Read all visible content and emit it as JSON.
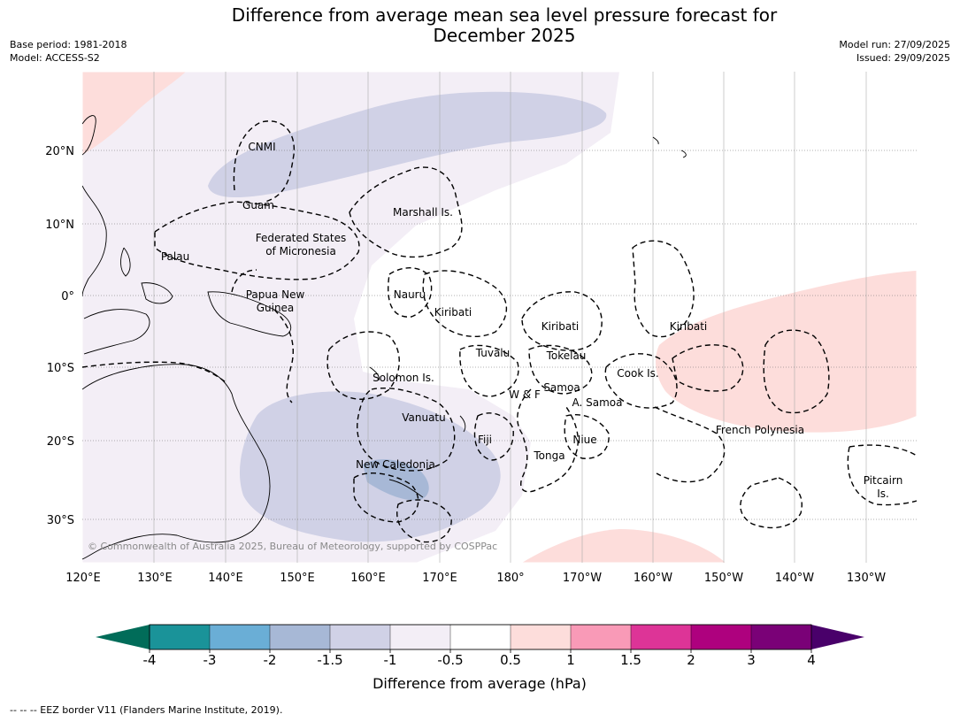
{
  "title_line1": "Difference from average mean sea level pressure forecast for",
  "title_line2": "December 2025",
  "base_period": "Base period: 1981-2018",
  "model": "Model: ACCESS-S2",
  "model_run": "Model run: 27/09/2025",
  "issued": "Issued: 29/09/2025",
  "copyright": "© Commonwealth of Australia 2025, Bureau of Meteorology, supported by COSPPac",
  "footer": "--  --  -- EEZ border V11 (Flanders Marine Institute, 2019).",
  "lat_ticks": [
    "20°N",
    "10°N",
    "0°",
    "10°S",
    "20°S",
    "30°S"
  ],
  "lon_ticks": [
    "120°E",
    "130°E",
    "140°E",
    "150°E",
    "160°E",
    "170°E",
    "180°",
    "170°W",
    "160°W",
    "150°W",
    "140°W",
    "130°W"
  ],
  "colorbar": {
    "label": "Difference from average (hPa)",
    "ticks": [
      "-4",
      "-3",
      "-2",
      "-1.5",
      "-1",
      "-0.5",
      "0.5",
      "1",
      "1.5",
      "2",
      "3",
      "4"
    ],
    "colors": [
      "#1a9399",
      "#6aaed6",
      "#a7b8d6",
      "#d0d1e6",
      "#f3eef6",
      "#ffffff",
      "#fddddb",
      "#f99ab7",
      "#dd3497",
      "#ae017e",
      "#7a0177"
    ],
    "under_color": "#016c59",
    "over_color": "#49006a"
  },
  "regions": [
    "CNMI",
    "Guam",
    "Marshall Is.",
    "Federated States",
    "of Micronesia",
    "Palau",
    "Nauru",
    "Papua New",
    "Guinea",
    "Kiribati",
    "Kiribati",
    "Kiribati",
    "Tuvalu",
    "Tokelau",
    "Solomon Is.",
    "Cook Is.",
    "Samoa",
    "W & F",
    "A. Samoa",
    "Vanuatu",
    "Fiji",
    "Niue",
    "French Polynesia",
    "New Caledonia",
    "Tonga",
    "Pitcairn",
    "Is."
  ]
}
